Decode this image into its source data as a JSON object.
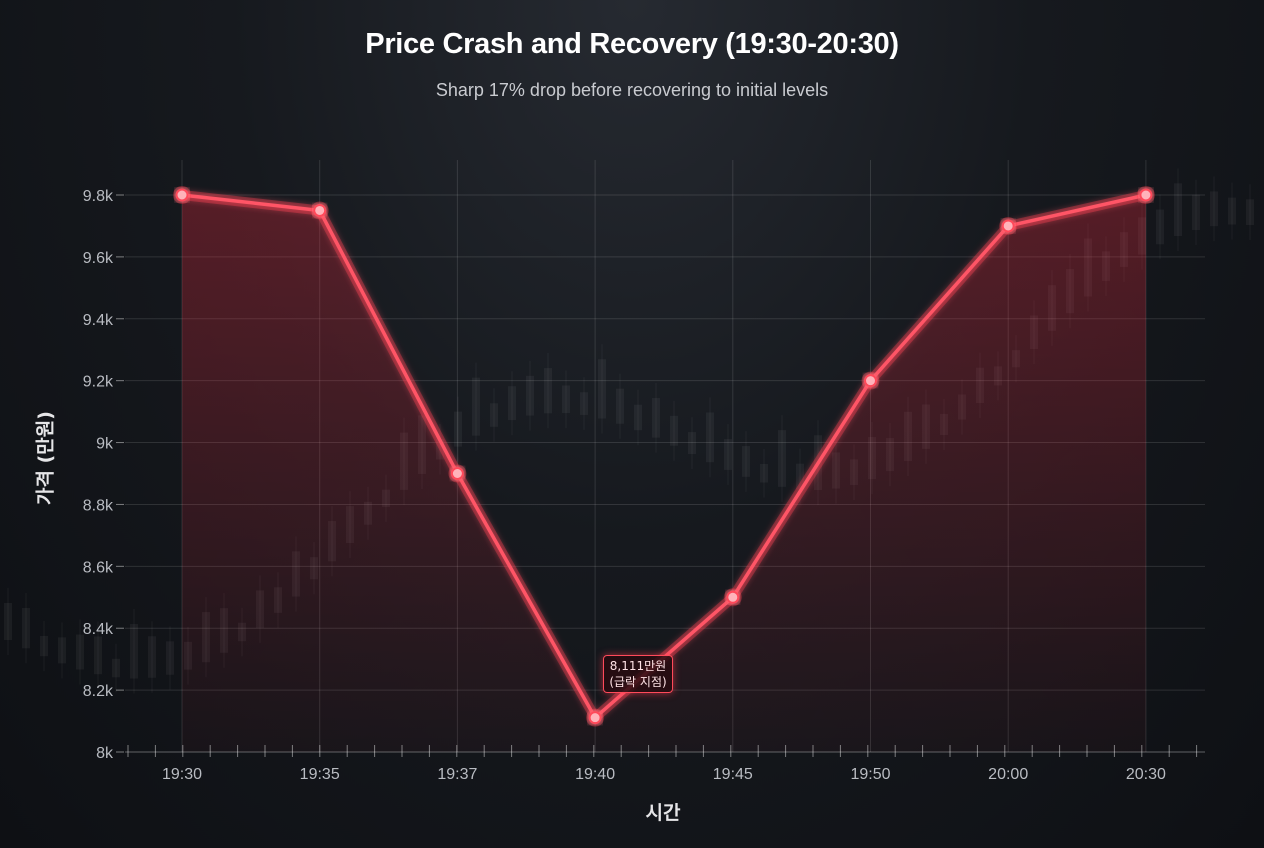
{
  "chart_data": {
    "type": "line",
    "title": "Price Crash and Recovery (19:30-20:30)",
    "subtitle": "Sharp 17% drop before recovering to initial levels",
    "xlabel": "시간",
    "ylabel": "가격 (만원)",
    "categories": [
      "19:30",
      "19:35",
      "19:37",
      "19:40",
      "19:45",
      "19:50",
      "20:00",
      "20:30"
    ],
    "series": [
      {
        "values": [
          9800,
          9750,
          8900,
          8111,
          8500,
          9200,
          9700,
          9800
        ]
      }
    ],
    "ylim": [
      8000,
      9800
    ],
    "yticks": [
      {
        "value": 8000,
        "label": "8k"
      },
      {
        "value": 8200,
        "label": "8.2k"
      },
      {
        "value": 8400,
        "label": "8.4k"
      },
      {
        "value": 8600,
        "label": "8.6k"
      },
      {
        "value": 8800,
        "label": "8.8k"
      },
      {
        "value": 9000,
        "label": "9k"
      },
      {
        "value": 9200,
        "label": "9.2k"
      },
      {
        "value": 9400,
        "label": "9.4k"
      },
      {
        "value": 9600,
        "label": "9.6k"
      },
      {
        "value": 9800,
        "label": "9.8k"
      }
    ],
    "grid": true,
    "line_color": "#ff3b4e",
    "annotation": {
      "point_index": 3,
      "line1": "8,111만원",
      "line2": "(급락 지점)"
    }
  }
}
